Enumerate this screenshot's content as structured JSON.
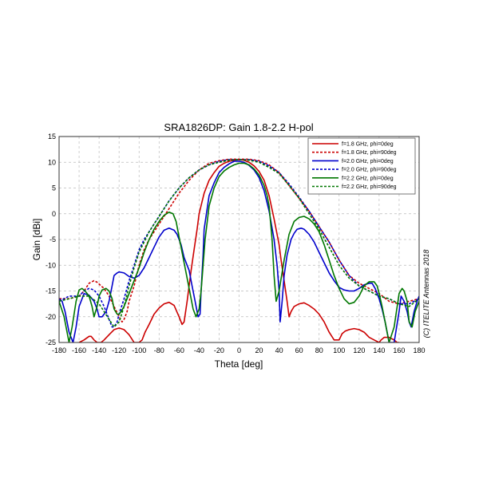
{
  "chart_data": {
    "type": "line",
    "title": "SRA1826DP: Gain 1.8-2.2 H-pol",
    "xlabel": "Theta [deg]",
    "ylabel": "Gain [dBi]",
    "credit": "(C) ITELITE Antennas 2018",
    "xlim": [
      -180,
      180
    ],
    "ylim": [
      -25,
      15
    ],
    "xticks": [
      -180,
      -160,
      -140,
      -120,
      -100,
      -80,
      -60,
      -40,
      -20,
      0,
      20,
      40,
      60,
      80,
      100,
      120,
      140,
      160,
      180
    ],
    "yticks": [
      -25,
      -20,
      -15,
      -10,
      -5,
      0,
      5,
      10,
      15
    ],
    "grid": true,
    "legend_position": "top-right",
    "series": [
      {
        "name": "f=1.8 GHz, phi=0deg",
        "color": "#cc0000",
        "dash": false,
        "x": [
          -160,
          -155,
          -150,
          -148,
          -145,
          -142,
          -138,
          -135,
          -130,
          -125,
          -120,
          -115,
          -110,
          -105,
          -100,
          -97,
          -94,
          -90,
          -85,
          -80,
          -75,
          -70,
          -65,
          -60,
          -57,
          -55,
          -52,
          -48,
          -45,
          -42,
          -40,
          -35,
          -30,
          -25,
          -20,
          -15,
          -10,
          -5,
          0,
          5,
          10,
          15,
          20,
          25,
          30,
          35,
          40,
          42,
          45,
          48,
          50,
          52,
          55,
          60,
          65,
          70,
          75,
          80,
          85,
          90,
          95,
          100,
          103,
          106,
          110,
          115,
          120,
          125,
          130,
          135,
          140,
          142,
          145,
          150,
          155,
          158,
          160
        ],
        "y": [
          -25,
          -24.5,
          -23.8,
          -23.8,
          -24.5,
          -25,
          -25,
          -24.5,
          -23.5,
          -22.5,
          -22.2,
          -22.5,
          -23.5,
          -25,
          -25,
          -24.5,
          -23,
          -21.5,
          -19.5,
          -18.3,
          -17.5,
          -17.2,
          -17.8,
          -20,
          -21.5,
          -21,
          -17,
          -11,
          -7,
          -3,
          0,
          4,
          6.5,
          8,
          9.2,
          9.8,
          10.2,
          10.4,
          10.5,
          10.4,
          10,
          9.3,
          8.2,
          6.5,
          3.5,
          -1,
          -6,
          -9,
          -13,
          -17,
          -20,
          -19,
          -18,
          -17.5,
          -17.3,
          -17.8,
          -18.5,
          -19.5,
          -21,
          -23,
          -24.5,
          -24.5,
          -23.3,
          -22.8,
          -22.5,
          -22.3,
          -22.5,
          -23,
          -24,
          -24.5,
          -25,
          -24.5,
          -24,
          -24,
          -24.5,
          -25,
          -25
        ]
      },
      {
        "name": "f=1.8 GHz, phi=90deg",
        "color": "#cc0000",
        "dash": true,
        "x": [
          -180,
          -170,
          -160,
          -155,
          -150,
          -145,
          -142,
          -138,
          -135,
          -130,
          -125,
          -120,
          -117,
          -115,
          -112,
          -110,
          -105,
          -100,
          -95,
          -90,
          -85,
          -80,
          -70,
          -60,
          -50,
          -40,
          -30,
          -20,
          -10,
          0,
          10,
          20,
          30,
          40,
          50,
          60,
          70,
          80,
          90,
          100,
          110,
          120,
          130,
          140,
          150,
          160,
          170,
          180
        ],
        "y": [
          -16.5,
          -16.5,
          -16,
          -15,
          -13.5,
          -13,
          -13.3,
          -14,
          -14.5,
          -16,
          -18,
          -20,
          -21,
          -20.5,
          -19,
          -17,
          -14,
          -10,
          -7,
          -5,
          -3.5,
          -2,
          1,
          4,
          6.5,
          8.5,
          9.8,
          10.3,
          10.6,
          10.6,
          10.6,
          10.3,
          9.5,
          8,
          5.5,
          3,
          0.5,
          -2.5,
          -5.5,
          -9,
          -12,
          -13.5,
          -14.5,
          -15.5,
          -17,
          -17.5,
          -17,
          -16.5
        ]
      },
      {
        "name": "f=2.0 GHz, phi=0deg",
        "color": "#0000cc",
        "dash": false,
        "x": [
          -180,
          -177,
          -174,
          -170,
          -166,
          -163,
          -160,
          -155,
          -150,
          -145,
          -142,
          -140,
          -137,
          -133,
          -130,
          -127,
          -125,
          -122,
          -120,
          -115,
          -110,
          -105,
          -100,
          -95,
          -90,
          -85,
          -80,
          -75,
          -70,
          -65,
          -62,
          -58,
          -55,
          -50,
          -47,
          -44,
          -41,
          -39,
          -38,
          -36,
          -35,
          -30,
          -25,
          -20,
          -15,
          -10,
          -5,
          0,
          5,
          10,
          15,
          20,
          25,
          30,
          35,
          38,
          40,
          41,
          43,
          45,
          48,
          52,
          55,
          58,
          62,
          65,
          70,
          75,
          80,
          85,
          90,
          95,
          100,
          105,
          110,
          115,
          120,
          125,
          130,
          133,
          136,
          138,
          140,
          143,
          146,
          150,
          155,
          160,
          162,
          165,
          168,
          170,
          172,
          175,
          178,
          180
        ],
        "y": [
          -16.5,
          -17,
          -19,
          -23,
          -25,
          -22,
          -18,
          -15.5,
          -15.8,
          -17,
          -18.5,
          -20,
          -20,
          -19,
          -17,
          -14,
          -12,
          -11.5,
          -11.3,
          -11.5,
          -12.2,
          -12.5,
          -12,
          -10.5,
          -8.5,
          -6.5,
          -4.5,
          -3.2,
          -2.8,
          -3.2,
          -4,
          -6,
          -8.5,
          -11,
          -14,
          -17,
          -20,
          -19.5,
          -15,
          -8,
          -3,
          3.5,
          6,
          8,
          9,
          9.7,
          10.2,
          10.2,
          10,
          9.4,
          8.5,
          7,
          4.5,
          0.5,
          -5,
          -10,
          -15,
          -21,
          -17,
          -12,
          -8,
          -5,
          -3.8,
          -3,
          -2.8,
          -3,
          -4,
          -5.5,
          -7.5,
          -9.5,
          -11.5,
          -13,
          -14.3,
          -14.8,
          -15,
          -15,
          -14.5,
          -13.8,
          -13.5,
          -13.5,
          -14.5,
          -15.5,
          -16.5,
          -18.5,
          -21,
          -25,
          -25,
          -19,
          -16,
          -17,
          -19,
          -21,
          -22,
          -19,
          -17,
          -16
        ]
      },
      {
        "name": "f=2.0 GHz, phi=90deg",
        "color": "#0000cc",
        "dash": true,
        "x": [
          -180,
          -170,
          -160,
          -155,
          -150,
          -145,
          -140,
          -135,
          -130,
          -127,
          -125,
          -122,
          -120,
          -115,
          -110,
          -105,
          -100,
          -95,
          -90,
          -85,
          -80,
          -70,
          -60,
          -50,
          -40,
          -30,
          -20,
          -10,
          0,
          10,
          20,
          30,
          40,
          50,
          60,
          70,
          80,
          90,
          100,
          110,
          120,
          130,
          140,
          150,
          160,
          170,
          180
        ],
        "y": [
          -17,
          -16,
          -16,
          -15,
          -14.5,
          -14.8,
          -16,
          -18,
          -20.5,
          -22,
          -22,
          -21,
          -19.5,
          -16.5,
          -13,
          -10,
          -7,
          -5,
          -3.5,
          -2,
          -0.5,
          2.5,
          5,
          7,
          8.5,
          9.5,
          10.2,
          10.5,
          10.5,
          10.5,
          10.2,
          9.3,
          8,
          5.8,
          3.2,
          0.5,
          -2.5,
          -5.5,
          -9,
          -12,
          -14,
          -15,
          -16,
          -16.5,
          -17.5,
          -17.5,
          -16.5
        ]
      },
      {
        "name": "f=2.2 GHz, phi=0deg",
        "color": "#007700",
        "dash": false,
        "x": [
          -180,
          -175,
          -170,
          -167,
          -163,
          -160,
          -157,
          -154,
          -150,
          -147,
          -145,
          -142,
          -140,
          -137,
          -133,
          -130,
          -127,
          -125,
          -122,
          -120,
          -118,
          -115,
          -110,
          -105,
          -100,
          -95,
          -90,
          -85,
          -80,
          -75,
          -70,
          -66,
          -63,
          -60,
          -55,
          -50,
          -46,
          -43,
          -40,
          -38,
          -36,
          -34,
          -30,
          -25,
          -20,
          -15,
          -10,
          -5,
          0,
          5,
          10,
          15,
          20,
          25,
          28,
          30,
          33,
          35,
          37,
          40,
          45,
          50,
          55,
          60,
          65,
          70,
          75,
          80,
          85,
          90,
          95,
          100,
          105,
          110,
          115,
          120,
          125,
          130,
          135,
          138,
          140,
          143,
          146,
          150,
          155,
          160,
          163,
          165,
          168,
          170,
          173,
          176,
          180
        ],
        "y": [
          -17,
          -20,
          -25,
          -22,
          -17,
          -14.8,
          -14.5,
          -15,
          -16,
          -18,
          -20,
          -18,
          -16,
          -14.8,
          -14.5,
          -15,
          -16.5,
          -18.5,
          -19.5,
          -19.5,
          -19,
          -18,
          -15.5,
          -13,
          -10.5,
          -7.5,
          -5,
          -3,
          -1.5,
          -0.3,
          0.3,
          0,
          -1.5,
          -4.5,
          -9.5,
          -14.5,
          -18.5,
          -20,
          -18.5,
          -15,
          -10,
          -5,
          1.5,
          5,
          7.2,
          8.3,
          9,
          9.5,
          9.8,
          9.8,
          9.5,
          8.7,
          7.5,
          5.5,
          3.5,
          1.5,
          -5,
          -12,
          -17,
          -15,
          -9,
          -4,
          -1.5,
          -0.7,
          -0.5,
          -1,
          -2,
          -3.5,
          -6,
          -9,
          -12,
          -14.5,
          -16.5,
          -17.5,
          -17.2,
          -16,
          -14,
          -13.2,
          -13.2,
          -14,
          -15.5,
          -18,
          -21,
          -25,
          -22,
          -15.5,
          -14.5,
          -15,
          -17,
          -21,
          -22,
          -19,
          -17
        ]
      },
      {
        "name": "f=2.2 GHz, phi=90deg",
        "color": "#007700",
        "dash": true,
        "x": [
          -180,
          -170,
          -160,
          -150,
          -140,
          -135,
          -130,
          -125,
          -120,
          -115,
          -110,
          -105,
          -100,
          -95,
          -90,
          -85,
          -80,
          -70,
          -60,
          -50,
          -40,
          -30,
          -20,
          -10,
          0,
          10,
          20,
          30,
          40,
          50,
          60,
          70,
          80,
          90,
          100,
          110,
          120,
          130,
          140,
          150,
          160,
          170,
          180
        ],
        "y": [
          -17,
          -16.5,
          -16,
          -16,
          -17.5,
          -19,
          -20.5,
          -22,
          -21,
          -18,
          -14,
          -10.5,
          -7.5,
          -5.5,
          -3.5,
          -2,
          -0.5,
          2.5,
          5,
          7,
          8.5,
          9.5,
          10,
          10.4,
          10.5,
          10.4,
          10,
          9,
          7.8,
          5.5,
          3,
          0,
          -3,
          -6.5,
          -10,
          -12.5,
          -14,
          -15,
          -16,
          -16.5,
          -17.5,
          -18,
          -16.5
        ]
      }
    ]
  }
}
